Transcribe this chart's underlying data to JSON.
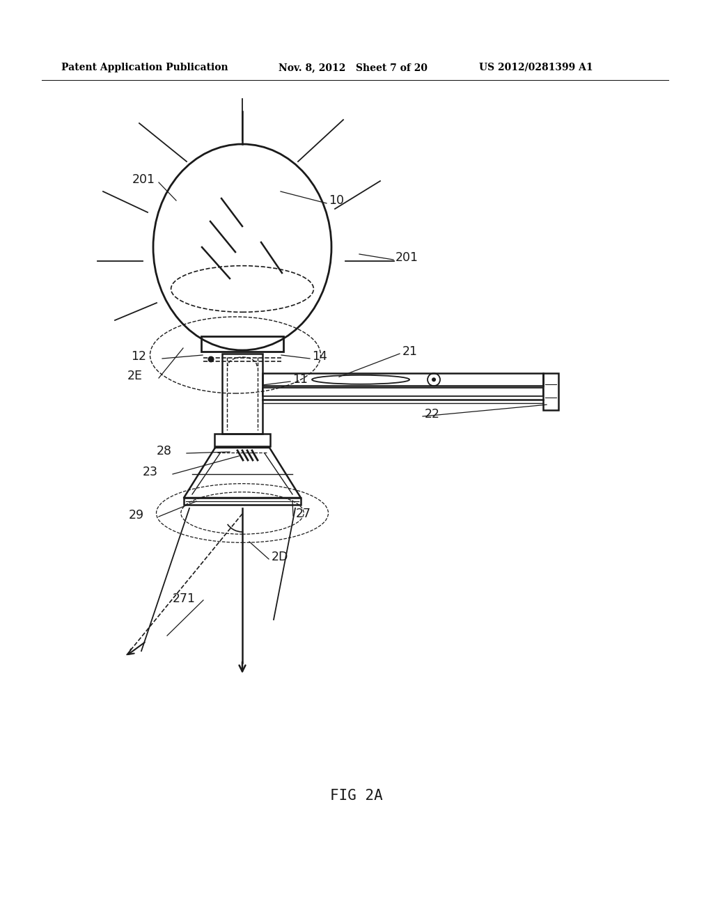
{
  "title_left": "Patent Application Publication",
  "title_mid": "Nov. 8, 2012   Sheet 7 of 20",
  "title_right": "US 2012/0281399 A1",
  "caption": "FIG 2A",
  "bg_color": "#ffffff",
  "line_color": "#1a1a1a",
  "fig_width": 10.24,
  "fig_height": 13.2
}
